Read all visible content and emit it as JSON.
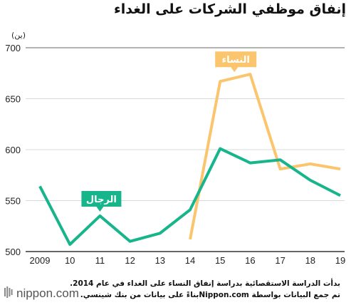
{
  "colors": {
    "women": "#fbc56e",
    "men": "#17b58b",
    "grid": "#d9d9d9",
    "axis": "#333333"
  },
  "brand": {
    "logo_text": "nippon.com",
    "logo_icon": "nippon-logo-icon"
  },
  "note": {
    "line1": "بدأت الدراسة الاستقصائية بدراسة إنفاق النساء على الغداء في عام 2014.",
    "line2": "تم جمع البيانات بواسطة Nippon.comبناءً على بيانات من بنك شينسي."
  },
  "chart_data": {
    "type": "line",
    "title": "إنفاق موظفي الشركات على الغداء",
    "ylabel": "(ين)",
    "ylim": [
      500,
      700
    ],
    "yticks": [
      "500",
      "550",
      "600",
      "650",
      "700"
    ],
    "x": [
      "2009",
      "10",
      "11",
      "12",
      "13",
      "14",
      "15",
      "16",
      "17",
      "18",
      "19"
    ],
    "grid": true,
    "series": [
      {
        "name": "الرجال",
        "color": "#17b58b",
        "values": [
          564,
          507,
          535,
          510,
          518,
          541,
          601,
          587,
          590,
          570,
          555
        ]
      },
      {
        "name": "النساء",
        "color": "#fbc56e",
        "values": [
          null,
          null,
          null,
          null,
          null,
          512,
          667,
          674,
          581,
          586,
          581
        ]
      }
    ]
  }
}
